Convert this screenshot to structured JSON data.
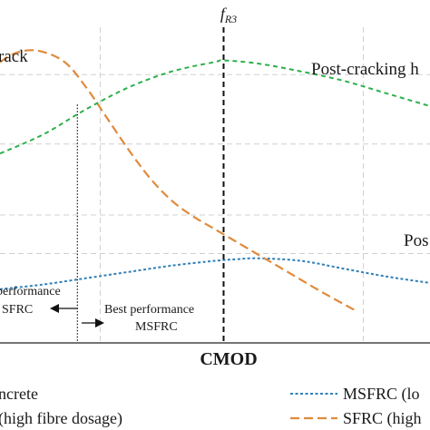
{
  "chart_data": {
    "type": "line",
    "title": "",
    "xlabel": "CMOD",
    "ylabel": "",
    "xlim": [
      0,
      10
    ],
    "ylim": [
      0,
      10
    ],
    "grid": true,
    "series": [
      {
        "name": "MSFRC (lo",
        "color": "#2f7fb8",
        "dash": "dotted",
        "x": [
          0,
          1,
          2,
          3,
          4,
          5,
          5.5,
          6,
          7,
          8,
          9,
          10
        ],
        "y": [
          1.7,
          1.85,
          2.05,
          2.25,
          2.45,
          2.6,
          2.65,
          2.68,
          2.6,
          2.35,
          2.1,
          1.9
        ]
      },
      {
        "name": "SFRC (high",
        "color": "#e08a3c",
        "dash": "dashed",
        "x": [
          0,
          0.4,
          0.9,
          1.5,
          2,
          2.5,
          3,
          3.5,
          4,
          4.5,
          5,
          5.5,
          6,
          6.5,
          7,
          7.5,
          8.3
        ],
        "y": [
          8.9,
          9.2,
          9.25,
          8.9,
          8.1,
          7.1,
          6.1,
          5.2,
          4.5,
          4.0,
          3.6,
          3.2,
          2.8,
          2.4,
          2.0,
          1.6,
          1.0
        ]
      },
      {
        "name": "",
        "color": "#2db04b",
        "dash": "dashed",
        "x": [
          0,
          1,
          2,
          3,
          4,
          5,
          5.2,
          6,
          7,
          8,
          9,
          10
        ],
        "y": [
          6.0,
          6.6,
          7.4,
          8.1,
          8.6,
          8.9,
          8.95,
          8.85,
          8.6,
          8.3,
          7.9,
          7.5
        ]
      }
    ],
    "vlines": [
      {
        "x": 5.2,
        "label_main": "f",
        "label_sub": "R3"
      },
      {
        "x": 1.8,
        "label_main": "",
        "label_sub": ""
      }
    ],
    "annotations": {
      "top_left": "rack",
      "top_right": "Post-cracking h",
      "mid_right": "Pos",
      "left_box_line1": "performance",
      "left_box_line2": "SFRC",
      "right_box_line1": "Best performance",
      "right_box_line2": "MSFRC"
    },
    "legend": {
      "placement": "bottom",
      "left_1": "ncrete",
      "left_2": "(high fibre dosage)",
      "right_1": "MSFRC (lo",
      "right_2": "SFRC (high"
    }
  }
}
